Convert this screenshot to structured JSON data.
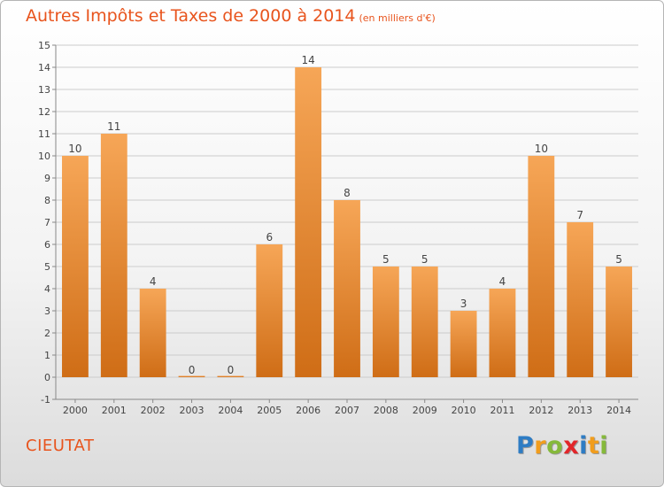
{
  "title": {
    "main": "Autres Impôts et Taxes de 2000 à 2014",
    "unit": "(en milliers d'€)"
  },
  "commune": "CIEUTAT",
  "brand": {
    "letters": [
      "P",
      "r",
      "o",
      "x",
      "i",
      "t",
      "i"
    ],
    "colors": [
      "#2e7cc4",
      "#f19d1d",
      "#85b93a",
      "#e2262a",
      "#2e7cc4",
      "#f19d1d",
      "#85b93a"
    ]
  },
  "colors": {
    "title": "#e8541d",
    "bar_light": "#f6a657",
    "bar_dark": "#cf6d16",
    "grid": "#cccccc"
  },
  "chart_data": {
    "type": "bar",
    "categories": [
      "2000",
      "2001",
      "2002",
      "2003",
      "2004",
      "2005",
      "2006",
      "2007",
      "2008",
      "2009",
      "2010",
      "2011",
      "2012",
      "2013",
      "2014"
    ],
    "values": [
      10,
      11,
      4,
      0,
      0,
      6,
      14,
      8,
      5,
      5,
      3,
      4,
      10,
      7,
      5
    ],
    "data_labels": [
      "10",
      "11",
      "4",
      "0",
      "0",
      "6",
      "14",
      "8",
      "5",
      "5",
      "3",
      "4",
      "10",
      "7",
      "5"
    ],
    "ylim": [
      -1,
      15
    ],
    "yticks": [
      -1,
      0,
      1,
      2,
      3,
      4,
      5,
      6,
      7,
      8,
      9,
      10,
      11,
      12,
      13,
      14,
      15
    ],
    "ytick_labels": [
      "-1",
      "0",
      "1",
      "2",
      "3",
      "4",
      "5",
      "6",
      "7",
      "8",
      "9",
      "10",
      "11",
      "12",
      "13",
      "14",
      "15"
    ],
    "grid": true,
    "xlabel": "",
    "ylabel": ""
  }
}
